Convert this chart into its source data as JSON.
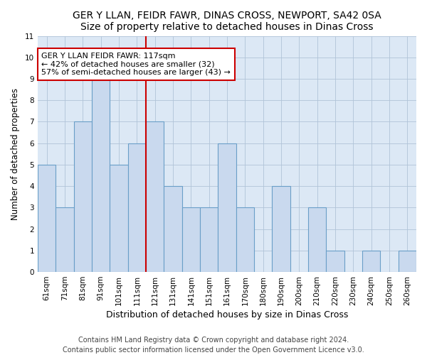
{
  "title": "GER Y LLAN, FEIDR FAWR, DINAS CROSS, NEWPORT, SA42 0SA",
  "subtitle": "Size of property relative to detached houses in Dinas Cross",
  "xlabel": "Distribution of detached houses by size in Dinas Cross",
  "ylabel": "Number of detached properties",
  "categories": [
    "61sqm",
    "71sqm",
    "81sqm",
    "91sqm",
    "101sqm",
    "111sqm",
    "121sqm",
    "131sqm",
    "141sqm",
    "151sqm",
    "161sqm",
    "170sqm",
    "180sqm",
    "190sqm",
    "200sqm",
    "210sqm",
    "220sqm",
    "230sqm",
    "240sqm",
    "250sqm",
    "260sqm"
  ],
  "values": [
    5,
    3,
    7,
    9,
    5,
    6,
    7,
    4,
    3,
    3,
    6,
    3,
    0,
    4,
    0,
    3,
    1,
    0,
    1,
    0,
    1
  ],
  "bar_color": "#c9d9ee",
  "bar_edge_color": "#6a9fc8",
  "highlight_x": "121sqm",
  "highlight_color": "#cc0000",
  "annotation_text": "GER Y LLAN FEIDR FAWR: 117sqm\n← 42% of detached houses are smaller (32)\n57% of semi-detached houses are larger (43) →",
  "annotation_box_edge_color": "#cc0000",
  "ylim": [
    0,
    11
  ],
  "yticks": [
    0,
    1,
    2,
    3,
    4,
    5,
    6,
    7,
    8,
    9,
    10,
    11
  ],
  "footer": "Contains HM Land Registry data © Crown copyright and database right 2024.\nContains public sector information licensed under the Open Government Licence v3.0.",
  "title_fontsize": 10,
  "xlabel_fontsize": 9,
  "ylabel_fontsize": 8.5,
  "tick_fontsize": 7.5,
  "annotation_fontsize": 8,
  "footer_fontsize": 7
}
